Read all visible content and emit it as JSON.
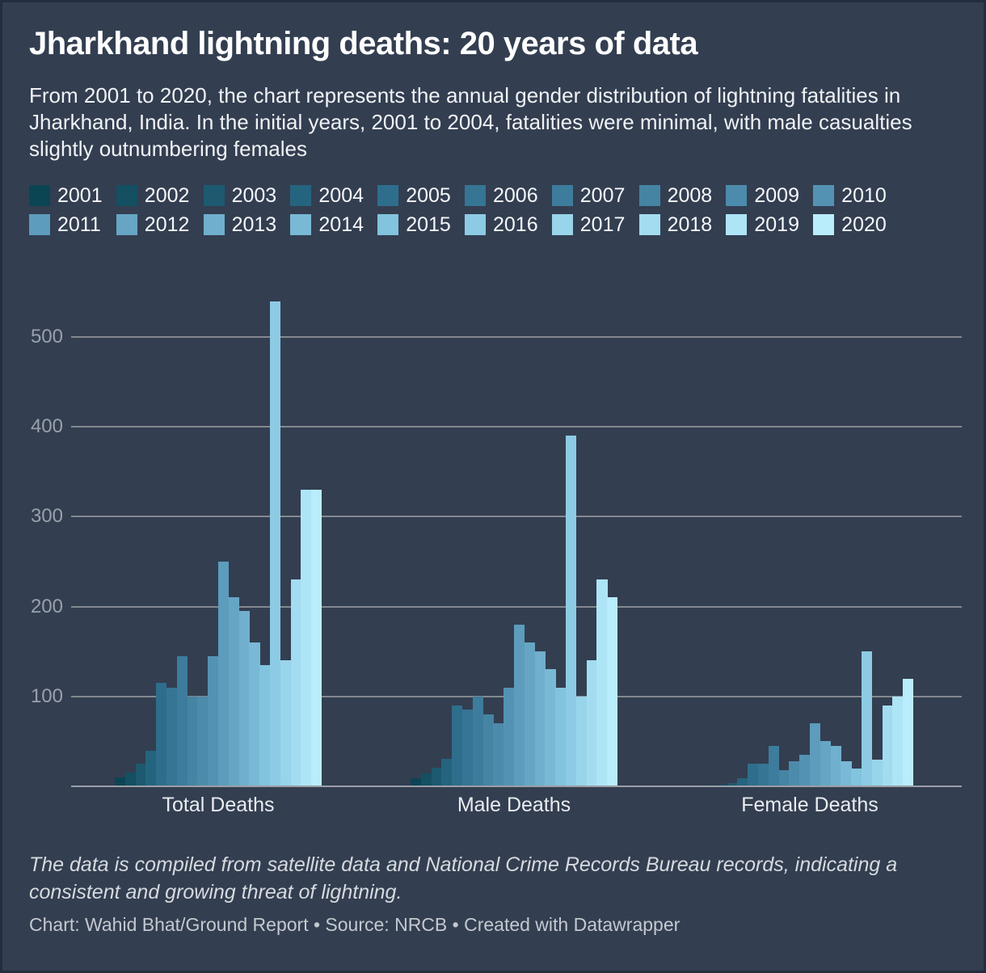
{
  "header": {
    "title": "Jharkhand lightning deaths: 20 years of data",
    "description": "From 2001 to 2020, the chart represents the annual gender distribution of lightning fatalities in Jharkhand, India. In the initial years, 2001 to 2004, fatalities were minimal, with male casualties slightly outnumbering females"
  },
  "chart_data": {
    "type": "bar",
    "title": "Jharkhand lightning deaths: 20 years of data",
    "categories": [
      "Total Deaths",
      "Male Deaths",
      "Female Deaths"
    ],
    "years": [
      "2001",
      "2002",
      "2003",
      "2004",
      "2005",
      "2006",
      "2007",
      "2008",
      "2009",
      "2010",
      "2011",
      "2012",
      "2013",
      "2014",
      "2015",
      "2016",
      "2017",
      "2018",
      "2019",
      "2020"
    ],
    "year_colors": [
      "#0B4554",
      "#144F62",
      "#1D5A70",
      "#25647E",
      "#2E6E8C",
      "#367594",
      "#3D7C9C",
      "#4584A3",
      "#4C8BAB",
      "#5492B3",
      "#5D9CBC",
      "#66A6C4",
      "#70AFCD",
      "#79B9D5",
      "#82C3DE",
      "#8DCBE4",
      "#98D4EA",
      "#A3DCF0",
      "#AEE5F6",
      "#B9EDFC"
    ],
    "series": [
      {
        "name": "Total Deaths",
        "values": [
          10,
          15,
          25,
          40,
          115,
          110,
          145,
          100,
          100,
          145,
          250,
          210,
          195,
          160,
          135,
          540,
          140,
          230,
          330,
          330
        ]
      },
      {
        "name": "Male Deaths",
        "values": [
          9,
          14,
          21,
          31,
          90,
          85,
          100,
          80,
          70,
          110,
          180,
          160,
          150,
          130,
          110,
          390,
          100,
          140,
          230,
          210
        ]
      },
      {
        "name": "Female Deaths",
        "values": [
          1,
          2,
          4,
          9,
          25,
          25,
          45,
          18,
          28,
          35,
          70,
          50,
          45,
          28,
          20,
          150,
          30,
          90,
          100,
          120
        ]
      }
    ],
    "yticks": [
      100,
      200,
      300,
      400,
      500
    ],
    "ylim": [
      0,
      560
    ],
    "grid": true,
    "legend_position": "top",
    "xlabel": "",
    "ylabel": ""
  },
  "footer": {
    "note": "The data is compiled from satellite data and National Crime Records Bureau records, indicating a consistent and growing threat of lightning.",
    "byline": "Chart: Wahid Bhat/Ground Report • Source: NRCB • Created with Datawrapper"
  },
  "colors": {
    "background": "#333E51",
    "gridline": "#84888F",
    "axis_text": "#9AA0AA"
  }
}
